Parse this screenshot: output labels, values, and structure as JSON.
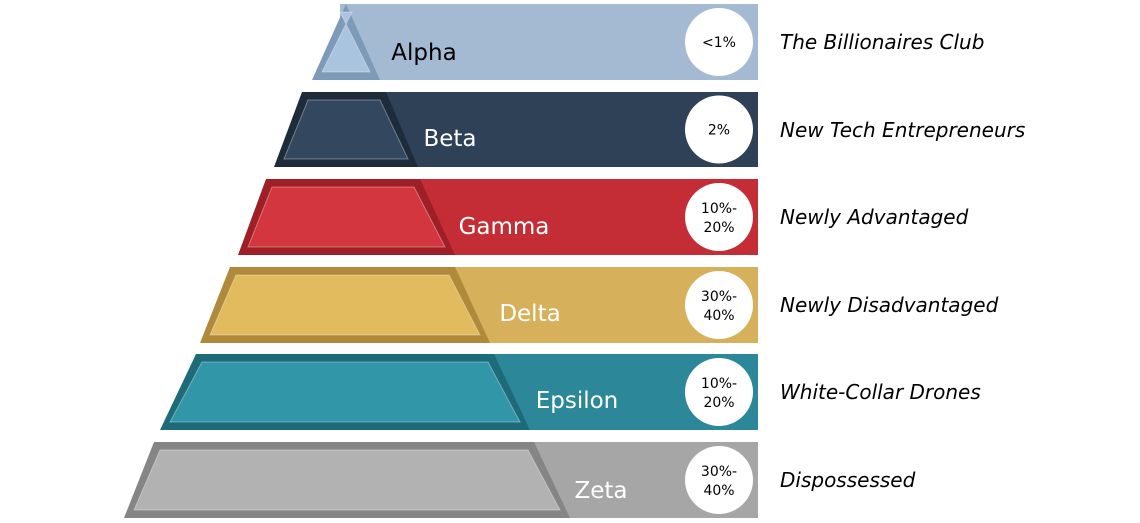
{
  "tiers": [
    {
      "name": "Alpha",
      "pct": [
        "<1%"
      ],
      "desc": "The Billionaires Club",
      "band": "#a4b9d2",
      "shape": "#a9c4df",
      "shape_dark": "#7d9ab8",
      "text": "#000000"
    },
    {
      "name": "Beta",
      "pct": [
        "2%"
      ],
      "desc": "New Tech Entrepreneurs",
      "band": "#2f4157",
      "shape": "#33475e",
      "shape_dark": "#1e2b3a",
      "text": "#ffffff"
    },
    {
      "name": "Gamma",
      "pct": [
        "10%-",
        "20%"
      ],
      "desc": "Newly Advantaged",
      "band": "#c42d35",
      "shape": "#d4363f",
      "shape_dark": "#9e1f26",
      "text": "#ffffff"
    },
    {
      "name": "Delta",
      "pct": [
        "30%-",
        "40%"
      ],
      "desc": "Newly Disadvantaged",
      "band": "#d6b05a",
      "shape": "#e3bb5f",
      "shape_dark": "#b08a3a",
      "text": "#ffffff"
    },
    {
      "name": "Epsilon",
      "pct": [
        "10%-",
        "20%"
      ],
      "desc": "White-Collar Drones",
      "band": "#2c8798",
      "shape": "#3296a9",
      "shape_dark": "#1d6b79",
      "text": "#ffffff"
    },
    {
      "name": "Zeta",
      "pct": [
        "30%-",
        "40%"
      ],
      "desc": "Dispossessed",
      "band": "#a6a6a6",
      "shape": "#b2b2b2",
      "shape_dark": "#858585",
      "text": "#ffffff"
    }
  ]
}
